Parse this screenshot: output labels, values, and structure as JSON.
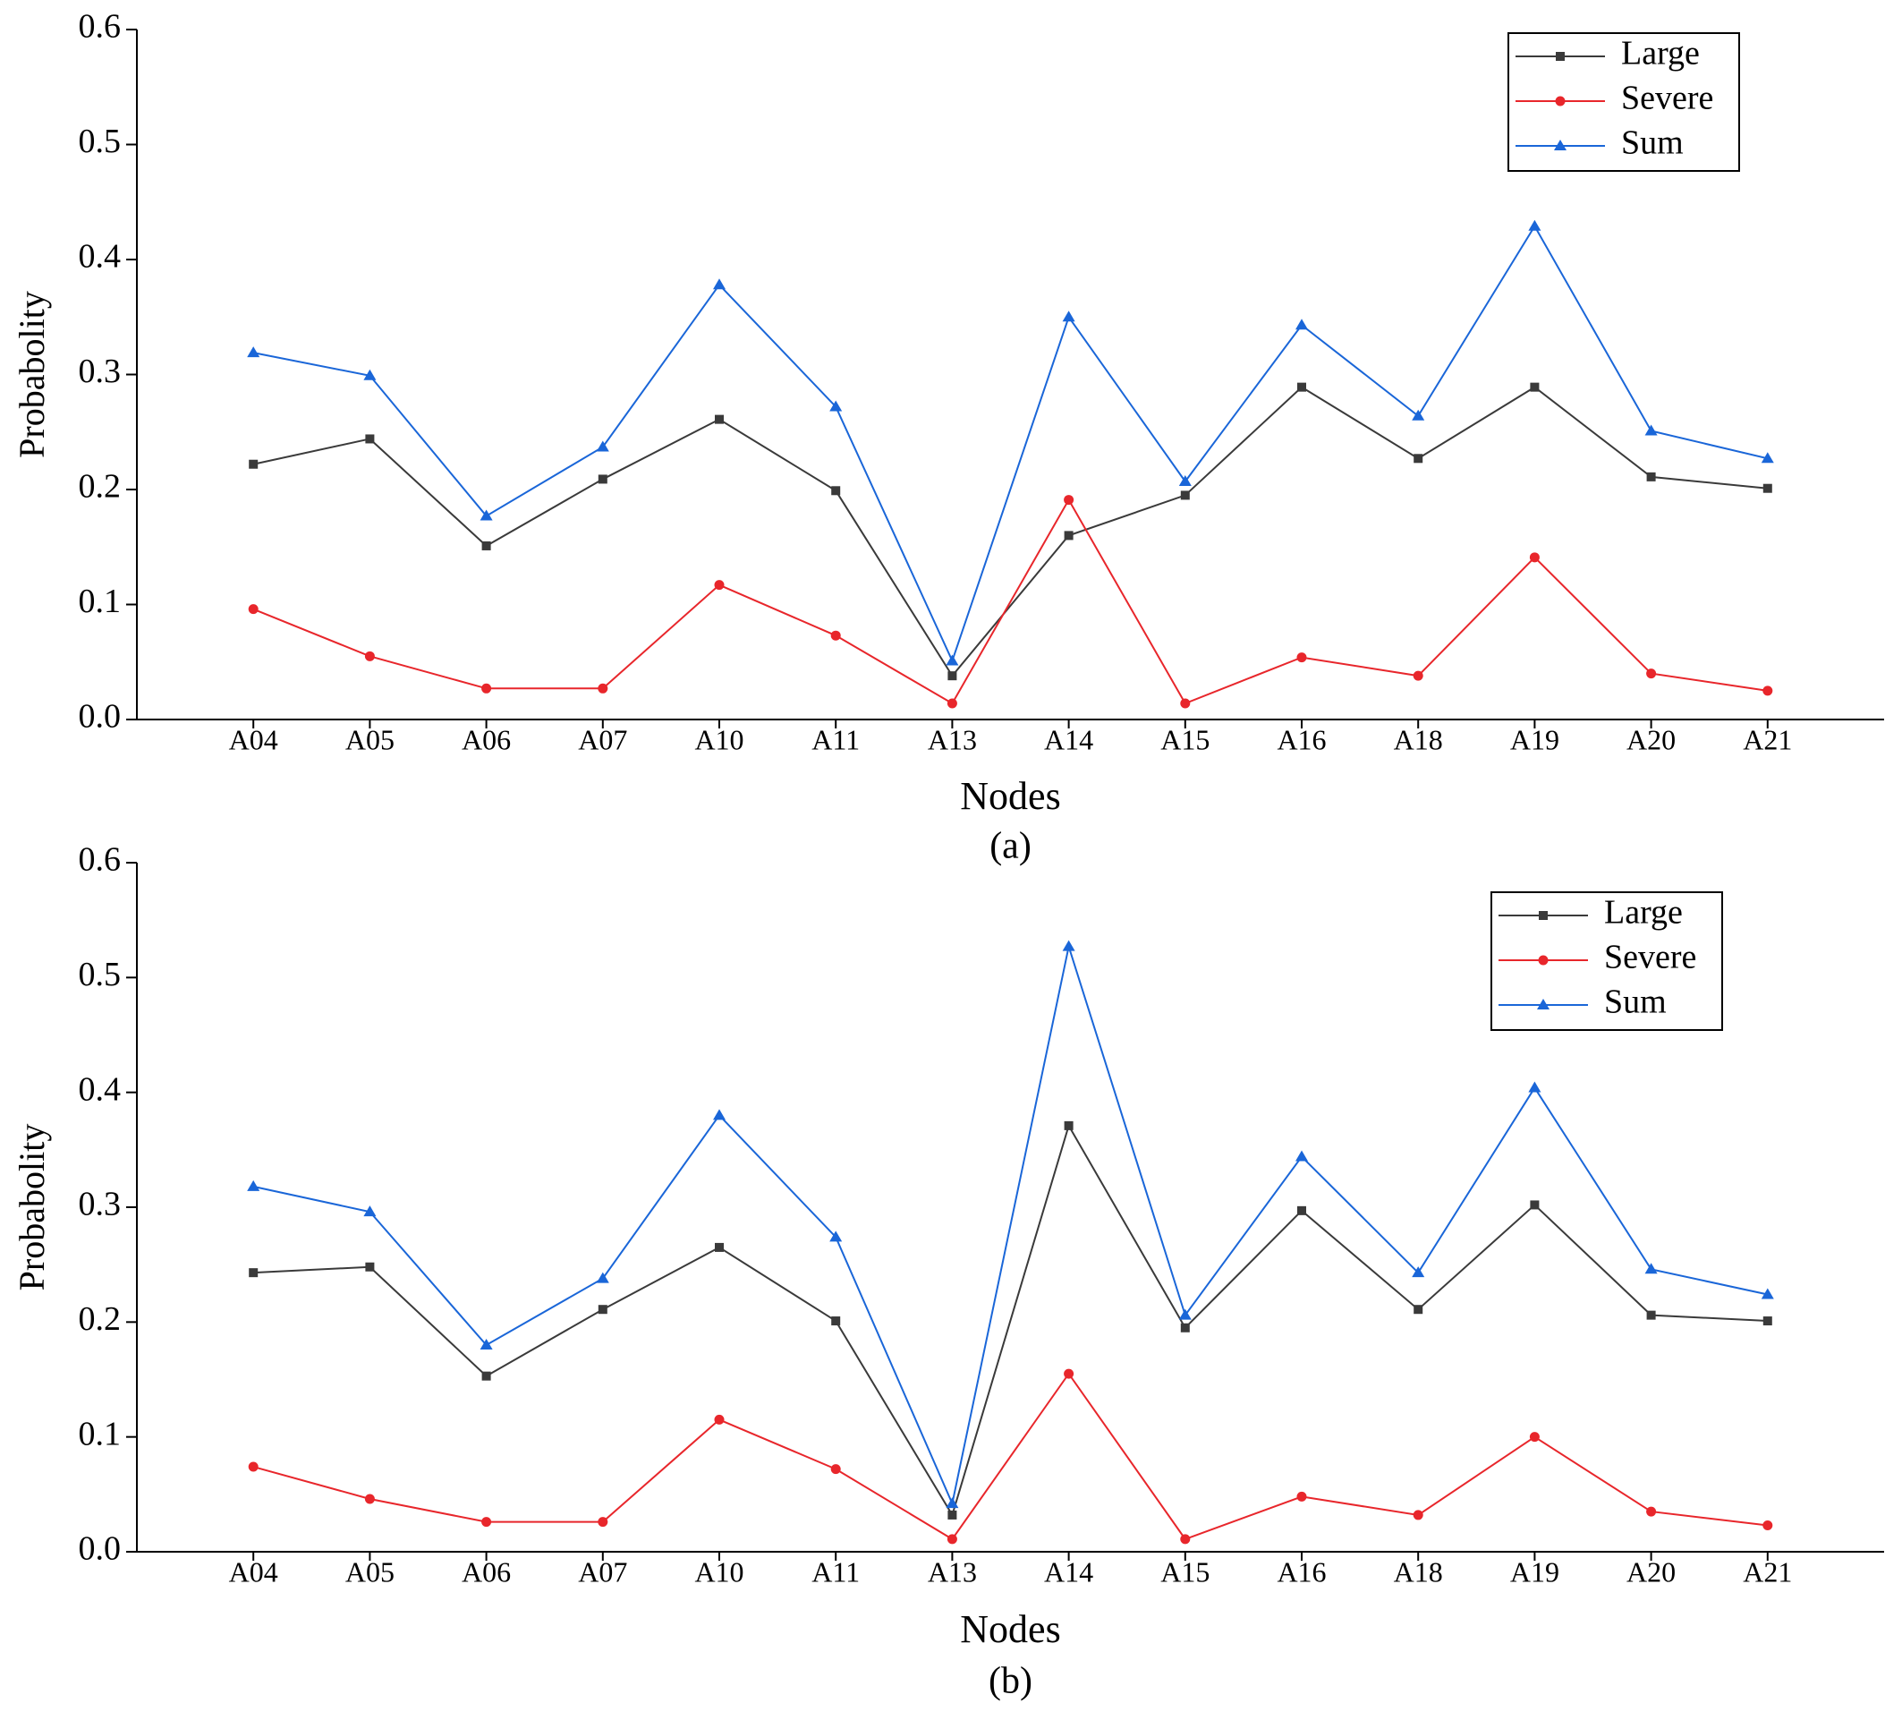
{
  "chart_data": [
    {
      "type": "line",
      "caption": "(a)",
      "xlabel": "Nodes",
      "ylabel": "Probabolity",
      "categories": [
        "A04",
        "A05",
        "A06",
        "A07",
        "A10",
        "A11",
        "A13",
        "A14",
        "A15",
        "A16",
        "A18",
        "A19",
        "A20",
        "A21"
      ],
      "ylim": [
        0,
        0.6
      ],
      "yticks": [
        {
          "value": 0,
          "label": "0.0"
        },
        0.1,
        0.2,
        0.3,
        0.4,
        0.5,
        0.6
      ],
      "legend": "upper right",
      "series": [
        {
          "name": "Large",
          "color": "#3a3a3a",
          "marker": "square",
          "values": [
            0.222,
            0.244,
            0.151,
            0.209,
            0.261,
            0.199,
            0.038,
            0.16,
            0.195,
            0.289,
            0.227,
            0.289,
            0.211,
            0.201
          ]
        },
        {
          "name": "Severe",
          "color": "#e8262b",
          "marker": "circle",
          "values": [
            0.096,
            0.055,
            0.027,
            0.027,
            0.117,
            0.073,
            0.014,
            0.191,
            0.014,
            0.054,
            0.038,
            0.141,
            0.04,
            0.025
          ]
        },
        {
          "name": "Sum",
          "color": "#1a66d8",
          "marker": "triangle",
          "values": [
            0.319,
            0.299,
            0.177,
            0.237,
            0.378,
            0.272,
            0.051,
            0.35,
            0.207,
            0.343,
            0.264,
            0.429,
            0.251,
            0.227
          ]
        }
      ]
    },
    {
      "type": "line",
      "caption": "(b)",
      "xlabel": "Nodes",
      "ylabel": "Probabolity",
      "categories": [
        "A04",
        "A05",
        "A06",
        "A07",
        "A10",
        "A11",
        "A13",
        "A14",
        "A15",
        "A16",
        "A18",
        "A19",
        "A20",
        "A21"
      ],
      "ylim": [
        0,
        0.6
      ],
      "yticks": [
        {
          "value": 0,
          "label": "0.0"
        },
        0.1,
        0.2,
        0.3,
        0.4,
        0.5,
        0.6
      ],
      "legend": "upper right",
      "series": [
        {
          "name": "Large",
          "color": "#3a3a3a",
          "marker": "square",
          "values": [
            0.243,
            0.248,
            0.153,
            0.211,
            0.265,
            0.201,
            0.032,
            0.371,
            0.195,
            0.297,
            0.211,
            0.302,
            0.206,
            0.201
          ]
        },
        {
          "name": "Severe",
          "color": "#e8262b",
          "marker": "circle",
          "values": [
            0.074,
            0.046,
            0.026,
            0.026,
            0.115,
            0.072,
            0.011,
            0.155,
            0.011,
            0.048,
            0.032,
            0.1,
            0.035,
            0.023
          ]
        },
        {
          "name": "Sum",
          "color": "#1a66d8",
          "marker": "triangle",
          "values": [
            0.318,
            0.296,
            0.18,
            0.238,
            0.38,
            0.274,
            0.042,
            0.527,
            0.206,
            0.344,
            0.243,
            0.404,
            0.246,
            0.224
          ]
        }
      ]
    }
  ]
}
